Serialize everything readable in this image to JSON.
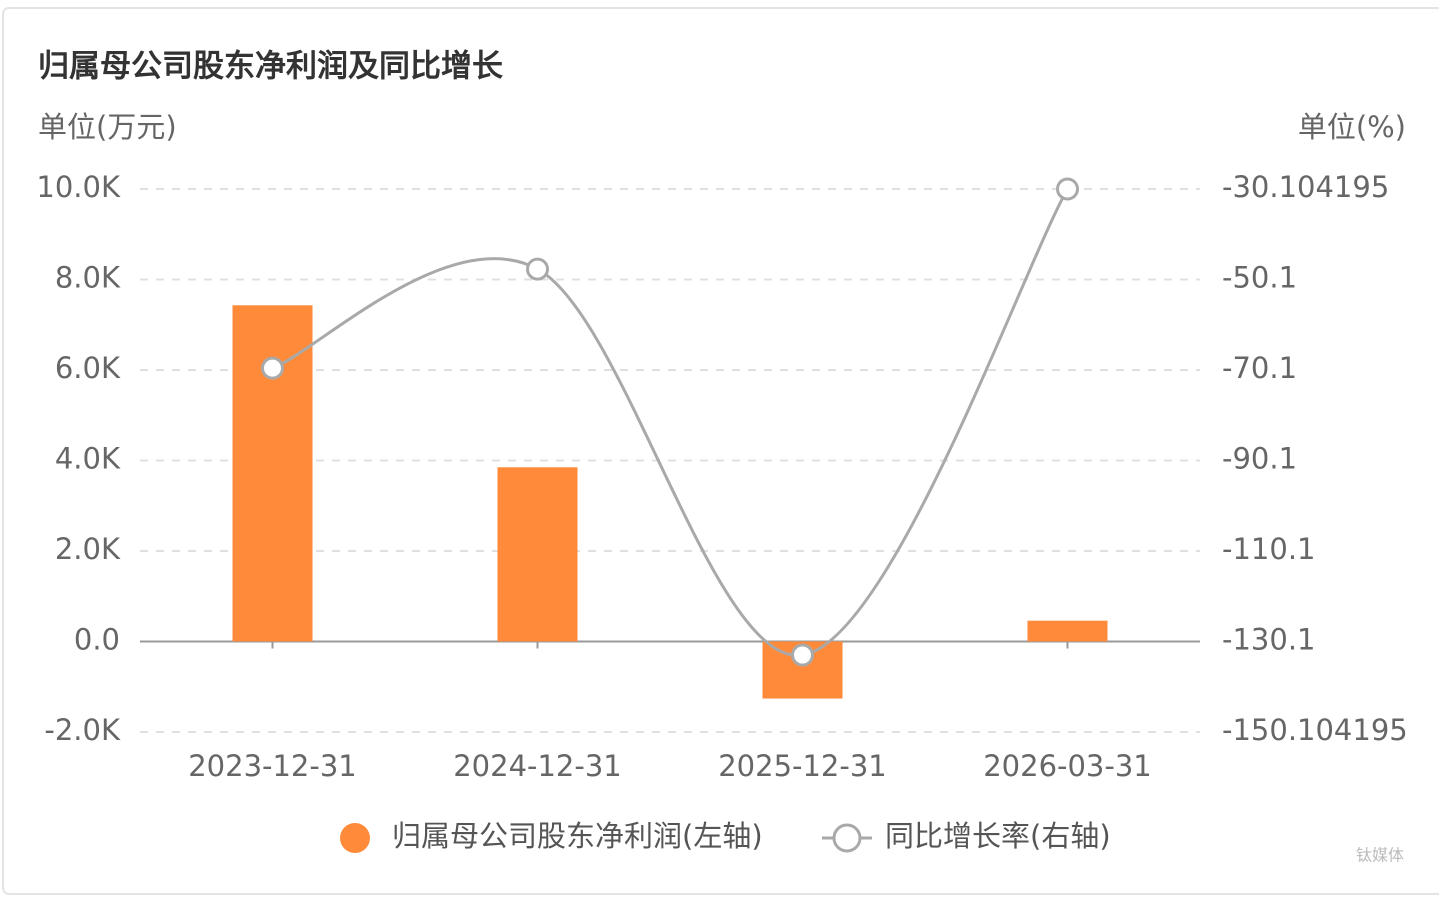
{
  "chart_data": {
    "type": "bar-line",
    "title": "归属母公司股东净利润及同比增长",
    "y_label": "单位(万元)",
    "y2_label": "单位(%)",
    "categories": [
      "2023-12-31",
      "2024-12-31",
      "2025-12-31",
      "2026-03-31"
    ],
    "series": [
      {
        "name": "归属母公司股东净利润(左轴)",
        "type": "bar",
        "color": "#ff8a3a",
        "values": [
          7430,
          3850,
          -1260,
          460
        ]
      },
      {
        "name": "同比增长率(右轴)",
        "type": "line",
        "axis": "y2",
        "color": "#a9a9a9",
        "values": [
          -69.7,
          -47.8,
          -133.1,
          -30.104195
        ]
      }
    ],
    "ylim": [
      -2000,
      10000
    ],
    "yticks": [
      {
        "value": -2000,
        "label": "-2.0K"
      },
      {
        "value": 0,
        "label": "0.0"
      },
      {
        "value": 2000,
        "label": "2.0K"
      },
      {
        "value": 4000,
        "label": "4.0K"
      },
      {
        "value": 6000,
        "label": "6.0K"
      },
      {
        "value": 8000,
        "label": "8.0K"
      },
      {
        "value": 10000,
        "label": "10.0K"
      }
    ],
    "y2lim": [
      -150.104195,
      -30.104195
    ],
    "y2ticks": [
      -150.104195,
      {
        "value": -130.104195,
        "label": "-130.1"
      },
      {
        "value": -110.104195,
        "label": "-110.1"
      },
      {
        "value": -90.104195,
        "label": "-90.1"
      },
      {
        "value": -70.104195,
        "label": "-70.1"
      },
      {
        "value": -50.104195,
        "label": "-50.1"
      },
      -30.104195
    ],
    "grid": true,
    "watermark": "钛媒体"
  }
}
